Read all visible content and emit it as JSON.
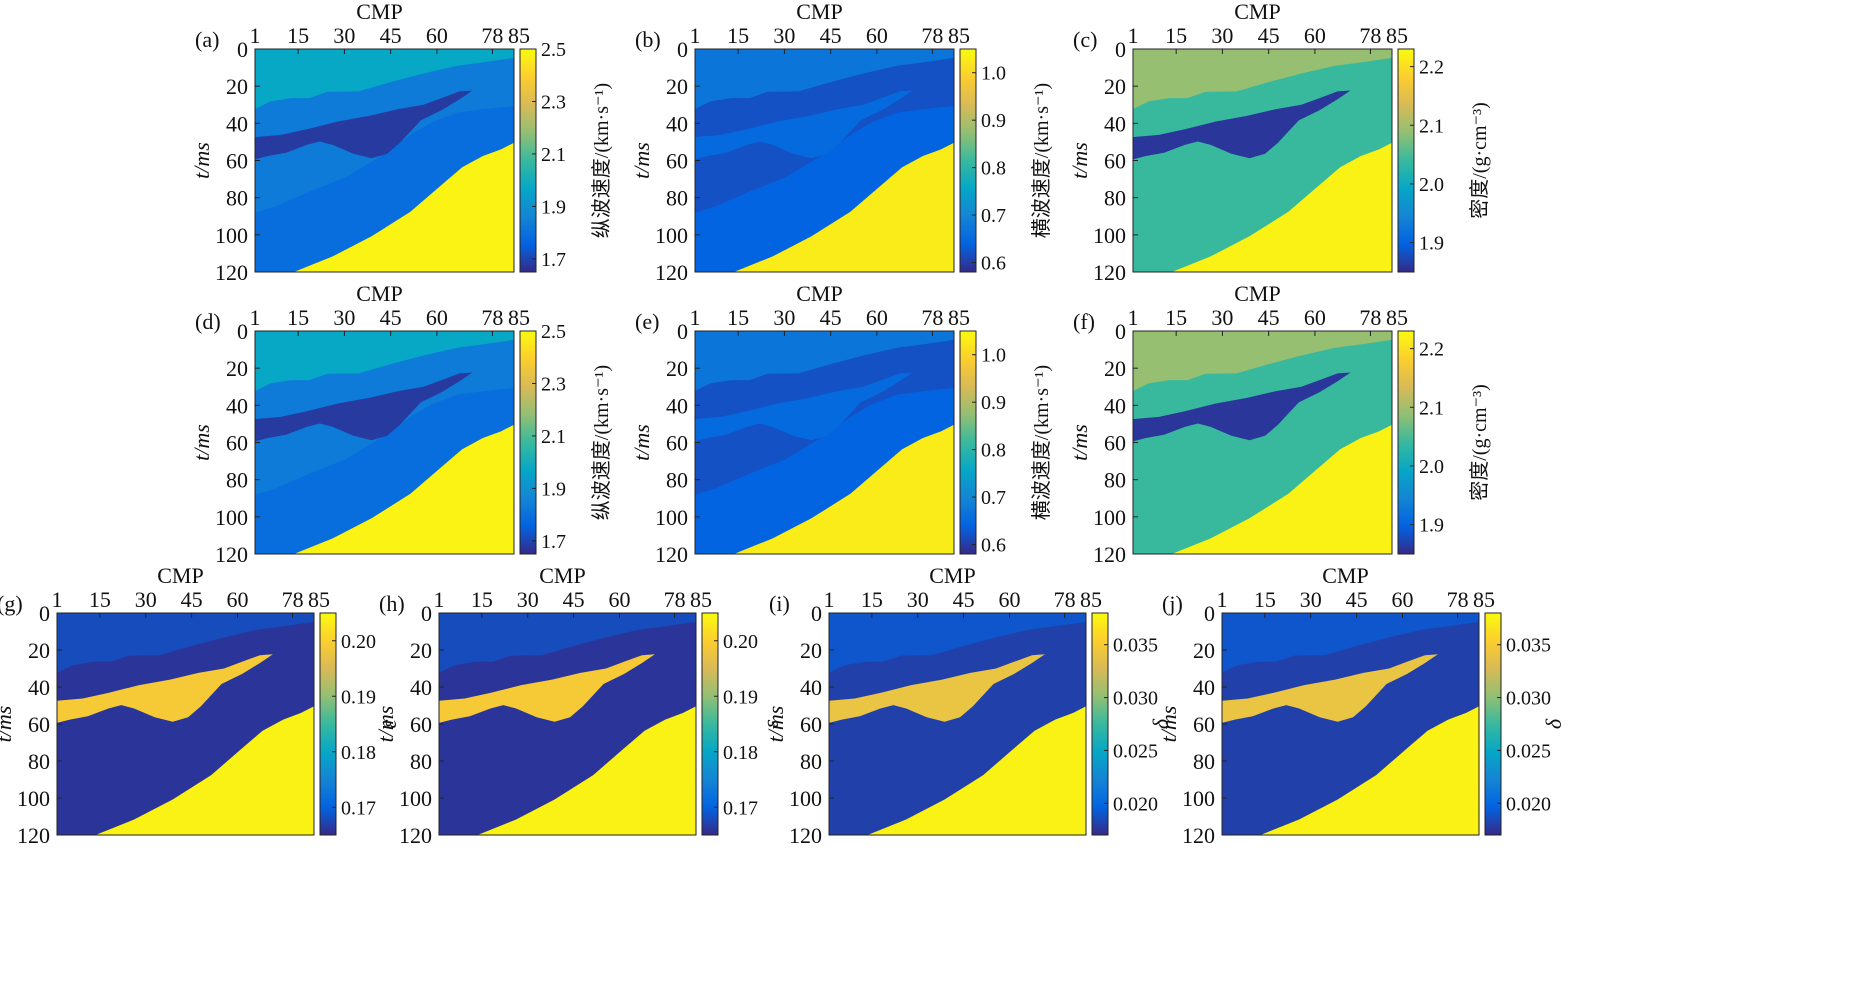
{
  "figure": {
    "x_axis_title": "CMP",
    "y_axis_title": "t/ms",
    "x_ticks": [
      "1",
      "15",
      "30",
      "45",
      "60",
      "78",
      "85"
    ],
    "y_ticks": [
      "0",
      "20",
      "40",
      "60",
      "80",
      "100",
      "120"
    ]
  },
  "colors": {
    "parula_stops": [
      "#352a87",
      "#0363e1",
      "#1485d4",
      "#06a7c6",
      "#38b99e",
      "#92bf73",
      "#d9ba56",
      "#fcce2e",
      "#f9fb0e"
    ]
  },
  "chart_data": [
    {
      "id": "a",
      "label": "(a)",
      "type": "heatmap",
      "colorbar_label": "纵波速度/(km·s⁻¹)",
      "colorbar_ticks": [
        "1.7",
        "1.9",
        "2.1",
        "2.3",
        "2.5"
      ],
      "clim": [
        1.65,
        2.5
      ],
      "layer_values": {
        "top": 1.97,
        "upper_middle": 1.83,
        "lower_middle": 1.79,
        "wedge": 1.68,
        "bottom": 2.48
      },
      "xlim": [
        1,
        85
      ],
      "ylim": [
        0,
        120
      ]
    },
    {
      "id": "b",
      "label": "(b)",
      "type": "heatmap",
      "colorbar_label": "横波速度/(km·s⁻¹)",
      "colorbar_ticks": [
        "0.6",
        "0.7",
        "0.8",
        "0.9",
        "1.0"
      ],
      "clim": [
        0.58,
        1.05
      ],
      "layer_values": {
        "top": 0.67,
        "upper_middle": 0.62,
        "lower_middle": 0.64,
        "wedge": 0.65,
        "bottom": 1.03
      },
      "xlim": [
        1,
        85
      ],
      "ylim": [
        0,
        120
      ]
    },
    {
      "id": "c",
      "label": "(c)",
      "type": "heatmap",
      "colorbar_label": "密度/(g·cm⁻³)",
      "colorbar_ticks": [
        "1.9",
        "2.0",
        "2.1",
        "2.2"
      ],
      "clim": [
        1.85,
        2.23
      ],
      "layer_values": {
        "top": 2.09,
        "upper_middle": 2.04,
        "lower_middle": 2.04,
        "wedge": 1.86,
        "bottom": 2.22
      },
      "xlim": [
        1,
        85
      ],
      "ylim": [
        0,
        120
      ]
    },
    {
      "id": "d",
      "label": "(d)",
      "type": "heatmap",
      "colorbar_label": "纵波速度/(km·s⁻¹)",
      "colorbar_ticks": [
        "1.7",
        "1.9",
        "2.1",
        "2.3",
        "2.5"
      ],
      "clim": [
        1.65,
        2.5
      ],
      "layer_values": {
        "top": 1.97,
        "upper_middle": 1.83,
        "lower_middle": 1.79,
        "wedge": 1.68,
        "bottom": 2.48
      },
      "xlim": [
        1,
        85
      ],
      "ylim": [
        0,
        120
      ]
    },
    {
      "id": "e",
      "label": "(e)",
      "type": "heatmap",
      "colorbar_label": "横波速度/(km·s⁻¹)",
      "colorbar_ticks": [
        "0.6",
        "0.7",
        "0.8",
        "0.9",
        "1.0"
      ],
      "clim": [
        0.58,
        1.05
      ],
      "layer_values": {
        "top": 0.67,
        "upper_middle": 0.62,
        "lower_middle": 0.64,
        "wedge": 0.65,
        "bottom": 1.03
      },
      "xlim": [
        1,
        85
      ],
      "ylim": [
        0,
        120
      ]
    },
    {
      "id": "f",
      "label": "(f)",
      "type": "heatmap",
      "colorbar_label": "密度/(g·cm⁻³)",
      "colorbar_ticks": [
        "1.9",
        "2.0",
        "2.1",
        "2.2"
      ],
      "clim": [
        1.85,
        2.23
      ],
      "layer_values": {
        "top": 2.09,
        "upper_middle": 2.04,
        "lower_middle": 2.04,
        "wedge": 1.86,
        "bottom": 2.22
      },
      "xlim": [
        1,
        85
      ],
      "ylim": [
        0,
        120
      ]
    },
    {
      "id": "g",
      "label": "(g)",
      "type": "heatmap",
      "colorbar_label": "ε",
      "colorbar_ticks": [
        "0.17",
        "0.18",
        "0.19",
        "0.20"
      ],
      "clim": [
        0.165,
        0.205
      ],
      "layer_values": {
        "top": 0.168,
        "upper_middle": 0.166,
        "lower_middle": 0.166,
        "wedge": 0.199,
        "bottom": 0.204
      },
      "xlim": [
        1,
        85
      ],
      "ylim": [
        0,
        120
      ]
    },
    {
      "id": "h",
      "label": "(h)",
      "type": "heatmap",
      "colorbar_label": "ε",
      "colorbar_ticks": [
        "0.17",
        "0.18",
        "0.19",
        "0.20"
      ],
      "clim": [
        0.165,
        0.205
      ],
      "layer_values": {
        "top": 0.168,
        "upper_middle": 0.166,
        "lower_middle": 0.166,
        "wedge": 0.199,
        "bottom": 0.204
      },
      "xlim": [
        1,
        85
      ],
      "ylim": [
        0,
        120
      ]
    },
    {
      "id": "i",
      "label": "(i)",
      "type": "heatmap",
      "colorbar_label": "δ",
      "colorbar_ticks": [
        "0.020",
        "0.025",
        "0.030",
        "0.035"
      ],
      "clim": [
        0.017,
        0.038
      ],
      "layer_values": {
        "top": 0.019,
        "upper_middle": 0.018,
        "lower_middle": 0.018,
        "wedge": 0.034,
        "bottom": 0.0375
      },
      "xlim": [
        1,
        85
      ],
      "ylim": [
        0,
        120
      ]
    },
    {
      "id": "j",
      "label": "(j)",
      "type": "heatmap",
      "colorbar_label": "δ",
      "colorbar_ticks": [
        "0.020",
        "0.025",
        "0.030",
        "0.035"
      ],
      "clim": [
        0.017,
        0.038
      ],
      "layer_values": {
        "top": 0.019,
        "upper_middle": 0.018,
        "lower_middle": 0.018,
        "wedge": 0.034,
        "bottom": 0.0375
      },
      "xlim": [
        1,
        85
      ],
      "ylim": [
        0,
        120
      ]
    }
  ]
}
